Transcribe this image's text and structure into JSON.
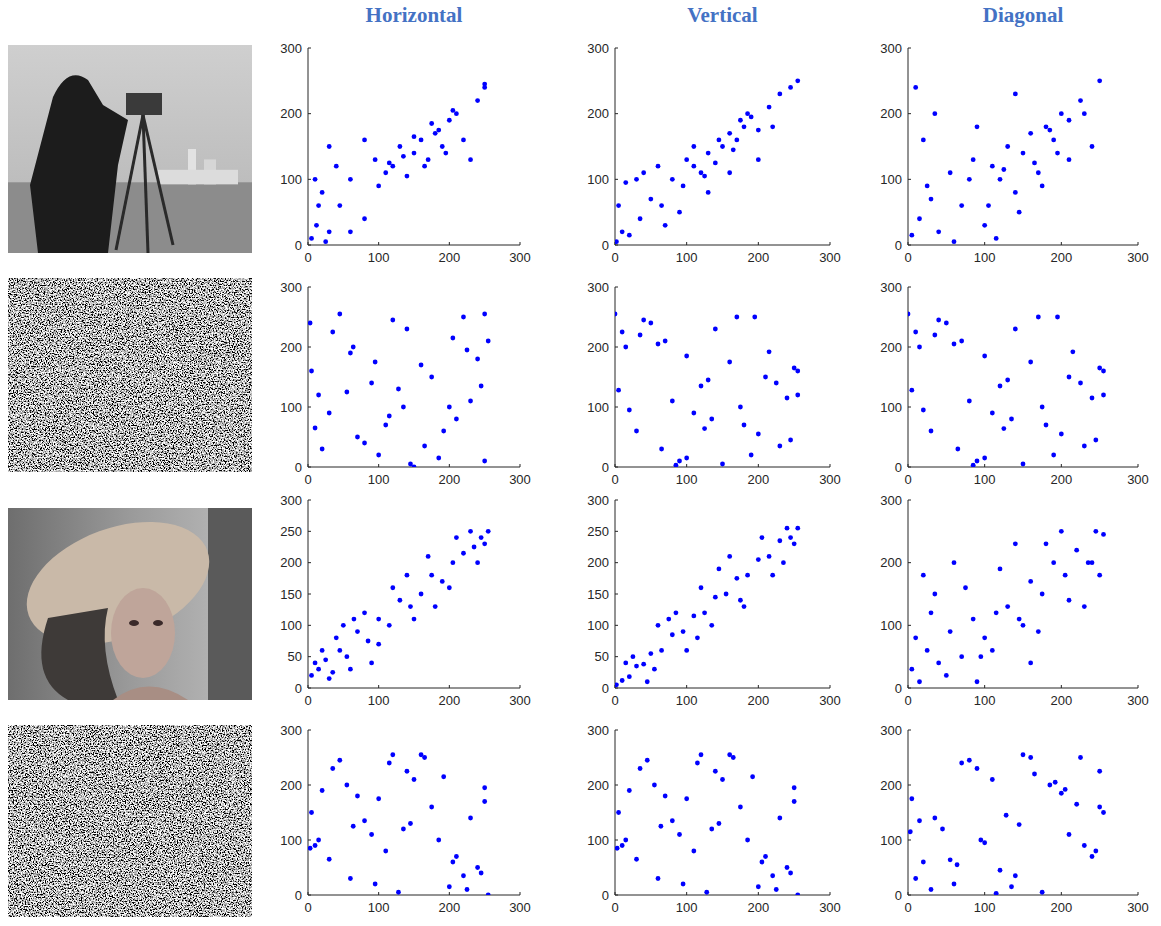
{
  "column_titles": [
    "Horizontal",
    "Vertical",
    "Diagonal"
  ],
  "chart_data": [
    {
      "type": "scatter",
      "color": "#0000ff",
      "marker": "dot",
      "xlim": [
        0,
        300
      ],
      "ylim": [
        0,
        300
      ],
      "xticks": [
        0,
        100,
        200,
        300
      ],
      "yticks": [
        0,
        100,
        200,
        300
      ],
      "x": [
        5,
        12,
        20,
        30,
        45,
        60,
        80,
        95,
        110,
        120,
        130,
        140,
        150,
        160,
        170,
        180,
        190,
        200,
        210,
        220,
        240,
        250,
        10,
        25,
        40,
        100,
        115,
        135,
        150,
        165,
        175,
        185,
        195,
        205,
        60,
        80,
        30,
        15,
        230,
        250
      ],
      "y": [
        10,
        30,
        80,
        20,
        60,
        100,
        40,
        130,
        110,
        120,
        150,
        105,
        140,
        160,
        130,
        170,
        150,
        190,
        200,
        160,
        220,
        245,
        100,
        5,
        120,
        90,
        125,
        135,
        165,
        120,
        185,
        175,
        140,
        205,
        20,
        160,
        150,
        60,
        130,
        240
      ]
    },
    {
      "type": "scatter",
      "color": "#0000ff",
      "marker": "dot",
      "xlim": [
        0,
        300
      ],
      "ylim": [
        0,
        300
      ],
      "xticks": [
        0,
        100,
        200,
        300
      ],
      "yticks": [
        0,
        100,
        200,
        300
      ],
      "x": [
        2,
        10,
        20,
        35,
        50,
        65,
        80,
        95,
        110,
        120,
        130,
        140,
        150,
        160,
        170,
        180,
        190,
        200,
        215,
        230,
        245,
        255,
        15,
        40,
        70,
        100,
        125,
        145,
        165,
        185,
        60,
        90,
        130,
        175,
        200,
        30,
        110,
        160,
        220,
        5
      ],
      "y": [
        5,
        20,
        15,
        40,
        70,
        60,
        100,
        90,
        120,
        110,
        140,
        125,
        150,
        170,
        160,
        180,
        195,
        175,
        210,
        230,
        240,
        250,
        95,
        110,
        30,
        130,
        105,
        160,
        145,
        200,
        120,
        50,
        80,
        190,
        130,
        100,
        150,
        110,
        180,
        60
      ]
    },
    {
      "type": "scatter",
      "color": "#0000ff",
      "marker": "dot",
      "xlim": [
        0,
        300
      ],
      "ylim": [
        0,
        300
      ],
      "xticks": [
        0,
        100,
        200,
        300
      ],
      "yticks": [
        0,
        100,
        200,
        300
      ],
      "x": [
        5,
        15,
        25,
        40,
        55,
        70,
        85,
        100,
        110,
        120,
        130,
        140,
        150,
        160,
        170,
        180,
        190,
        200,
        210,
        225,
        240,
        250,
        20,
        35,
        60,
        90,
        105,
        125,
        145,
        165,
        185,
        195,
        30,
        80,
        140,
        175,
        210,
        10,
        115,
        230
      ],
      "y": [
        15,
        40,
        90,
        20,
        110,
        60,
        130,
        30,
        120,
        100,
        150,
        80,
        140,
        170,
        110,
        180,
        160,
        200,
        130,
        220,
        150,
        250,
        160,
        200,
        5,
        180,
        60,
        115,
        50,
        125,
        175,
        140,
        70,
        100,
        230,
        90,
        190,
        240,
        10,
        200
      ]
    },
    {
      "type": "scatter",
      "color": "#0000ff",
      "marker": "dot",
      "xlim": [
        0,
        300
      ],
      "ylim": [
        0,
        300
      ],
      "xticks": [
        0,
        100,
        200,
        300
      ],
      "yticks": [
        0,
        100,
        200,
        300
      ],
      "x": [
        3,
        250,
        128,
        64,
        192,
        30,
        220,
        100,
        160,
        15,
        240,
        80,
        140,
        200,
        45,
        175,
        110,
        255,
        20,
        90,
        230,
        60,
        150,
        210,
        5,
        120,
        185,
        35,
        245,
        70,
        135,
        250,
        95,
        165,
        10,
        205,
        55,
        145,
        225,
        115
      ],
      "y": [
        240,
        10,
        130,
        200,
        60,
        90,
        250,
        20,
        170,
        120,
        180,
        40,
        230,
        100,
        255,
        150,
        70,
        210,
        30,
        140,
        110,
        190,
        0,
        80,
        160,
        245,
        15,
        225,
        135,
        50,
        100,
        255,
        175,
        35,
        65,
        215,
        125,
        5,
        195,
        85
      ]
    },
    {
      "type": "scatter",
      "color": "#0000ff",
      "marker": "dot",
      "xlim": [
        0,
        300
      ],
      "ylim": [
        0,
        300
      ],
      "xticks": [
        0,
        100,
        200,
        300
      ],
      "yticks": [
        0,
        100,
        200,
        300
      ],
      "x": [
        240,
        10,
        130,
        200,
        60,
        90,
        250,
        20,
        170,
        120,
        180,
        40,
        230,
        100,
        255,
        150,
        70,
        210,
        30,
        140,
        110,
        190,
        0,
        80,
        160,
        245,
        15,
        225,
        135,
        50,
        100,
        255,
        175,
        35,
        65,
        215,
        125,
        5,
        195,
        85
      ],
      "y": [
        115,
        225,
        145,
        55,
        205,
        10,
        165,
        95,
        250,
        135,
        70,
        245,
        35,
        185,
        120,
        5,
        210,
        150,
        60,
        230,
        90,
        20,
        255,
        110,
        175,
        45,
        200,
        140,
        80,
        240,
        15,
        160,
        100,
        220,
        30,
        192,
        64,
        128,
        250,
        3
      ]
    },
    {
      "type": "scatter",
      "color": "#0000ff",
      "marker": "dot",
      "xlim": [
        0,
        300
      ],
      "ylim": [
        0,
        300
      ],
      "xticks": [
        0,
        100,
        200,
        300
      ],
      "yticks": [
        0,
        100,
        200,
        300
      ],
      "x": [
        85,
        195,
        5,
        125,
        215,
        65,
        35,
        175,
        255,
        100,
        50,
        135,
        225,
        15,
        245,
        160,
        80,
        0,
        190,
        110,
        140,
        30,
        210,
        70,
        150,
        255,
        100,
        230,
        40,
        180,
        120,
        170,
        20,
        250,
        90,
        60,
        200,
        130,
        10,
        240
      ],
      "y": [
        3,
        250,
        128,
        64,
        192,
        30,
        220,
        100,
        160,
        15,
        240,
        80,
        140,
        200,
        45,
        175,
        110,
        255,
        20,
        90,
        230,
        60,
        150,
        210,
        5,
        120,
        185,
        35,
        245,
        70,
        135,
        250,
        95,
        165,
        10,
        205,
        55,
        145,
        225,
        115
      ]
    },
    {
      "type": "scatter",
      "color": "#0000ff",
      "marker": "dot",
      "xlim": [
        0,
        300
      ],
      "ylim": [
        0,
        300
      ],
      "xticks": [
        0,
        100,
        200,
        300
      ],
      "yticks": [
        0,
        50,
        100,
        150,
        200,
        250,
        300
      ],
      "x": [
        5,
        15,
        25,
        35,
        45,
        55,
        70,
        85,
        100,
        115,
        130,
        145,
        160,
        175,
        190,
        205,
        220,
        235,
        245,
        255,
        20,
        40,
        60,
        80,
        100,
        140,
        180,
        210,
        240,
        30,
        50,
        120,
        150,
        200,
        230,
        90,
        170,
        250,
        10,
        65
      ],
      "y": [
        20,
        30,
        45,
        25,
        60,
        50,
        90,
        75,
        110,
        100,
        140,
        130,
        150,
        180,
        170,
        200,
        215,
        225,
        240,
        250,
        60,
        80,
        30,
        120,
        70,
        180,
        130,
        240,
        200,
        15,
        100,
        160,
        110,
        160,
        250,
        40,
        210,
        230,
        40,
        110
      ]
    },
    {
      "type": "scatter",
      "color": "#0000ff",
      "marker": "dot",
      "xlim": [
        0,
        300
      ],
      "ylim": [
        0,
        300
      ],
      "xticks": [
        0,
        100,
        200,
        300
      ],
      "yticks": [
        0,
        50,
        100,
        150,
        200,
        250,
        300
      ],
      "x": [
        2,
        10,
        20,
        30,
        40,
        50,
        65,
        80,
        95,
        110,
        125,
        140,
        155,
        170,
        185,
        200,
        215,
        230,
        245,
        255,
        25,
        55,
        85,
        115,
        145,
        175,
        205,
        235,
        60,
        120,
        180,
        240,
        15,
        45,
        100,
        160,
        220,
        250,
        75,
        135
      ],
      "y": [
        5,
        12,
        18,
        35,
        38,
        55,
        60,
        85,
        90,
        115,
        120,
        145,
        150,
        175,
        180,
        205,
        210,
        235,
        240,
        255,
        50,
        30,
        120,
        80,
        190,
        140,
        240,
        200,
        100,
        160,
        130,
        255,
        40,
        10,
        60,
        210,
        180,
        230,
        110,
        100
      ]
    },
    {
      "type": "scatter",
      "color": "#0000ff",
      "marker": "dot",
      "xlim": [
        0,
        300
      ],
      "ylim": [
        0,
        300
      ],
      "xticks": [
        0,
        100,
        200,
        300
      ],
      "yticks": [
        0,
        100,
        200,
        300
      ],
      "x": [
        5,
        15,
        25,
        40,
        55,
        70,
        85,
        100,
        115,
        130,
        145,
        160,
        175,
        190,
        205,
        220,
        235,
        245,
        255,
        10,
        30,
        50,
        75,
        95,
        120,
        150,
        180,
        210,
        240,
        20,
        60,
        110,
        140,
        170,
        200,
        230,
        35,
        90,
        160,
        250
      ],
      "y": [
        30,
        10,
        60,
        40,
        90,
        50,
        110,
        80,
        120,
        130,
        110,
        170,
        150,
        200,
        180,
        220,
        200,
        250,
        245,
        80,
        120,
        20,
        160,
        50,
        190,
        100,
        230,
        140,
        200,
        180,
        200,
        60,
        230,
        90,
        250,
        130,
        150,
        10,
        40,
        180
      ]
    },
    {
      "type": "scatter",
      "color": "#0000ff",
      "marker": "dot",
      "xlim": [
        0,
        300
      ],
      "ylim": [
        0,
        300
      ],
      "xticks": [
        0,
        100,
        200,
        300
      ],
      "yticks": [
        0,
        100,
        200,
        300
      ],
      "x": [
        3,
        250,
        128,
        64,
        192,
        30,
        220,
        100,
        160,
        15,
        240,
        80,
        140,
        200,
        45,
        175,
        110,
        255,
        20,
        90,
        230,
        60,
        150,
        210,
        5,
        120,
        185,
        35,
        245,
        70,
        135,
        250,
        95,
        165,
        10,
        205,
        55,
        145,
        225,
        115
      ],
      "y": [
        85,
        195,
        5,
        125,
        215,
        65,
        35,
        175,
        255,
        100,
        50,
        135,
        225,
        15,
        245,
        160,
        80,
        0,
        190,
        110,
        140,
        30,
        210,
        70,
        150,
        255,
        100,
        230,
        40,
        180,
        120,
        170,
        20,
        250,
        90,
        60,
        200,
        130,
        10,
        240
      ]
    },
    {
      "type": "scatter",
      "color": "#0000ff",
      "marker": "dot",
      "xlim": [
        0,
        300
      ],
      "ylim": [
        0,
        300
      ],
      "xticks": [
        0,
        100,
        200,
        300
      ],
      "yticks": [
        0,
        100,
        200,
        300
      ],
      "x": [
        115,
        225,
        145,
        55,
        205,
        10,
        165,
        95,
        250,
        135,
        70,
        245,
        35,
        185,
        120,
        5,
        210,
        150,
        60,
        230,
        90,
        20,
        255,
        110,
        175,
        45,
        200,
        140,
        80,
        240,
        15,
        160,
        100,
        220,
        30,
        192,
        64,
        128,
        250,
        3
      ],
      "y": [
        240,
        10,
        130,
        200,
        60,
        90,
        250,
        20,
        170,
        120,
        180,
        40,
        230,
        100,
        255,
        150,
        70,
        210,
        30,
        140,
        110,
        190,
        0,
        80,
        160,
        245,
        15,
        225,
        135,
        50,
        100,
        255,
        175,
        35,
        65,
        215,
        125,
        5,
        195,
        85
      ]
    },
    {
      "type": "scatter",
      "color": "#0000ff",
      "marker": "dot",
      "xlim": [
        0,
        300
      ],
      "ylim": [
        0,
        300
      ],
      "xticks": [
        0,
        100,
        200,
        300
      ],
      "yticks": [
        0,
        100,
        200,
        300
      ],
      "x": [
        115,
        225,
        145,
        55,
        205,
        10,
        165,
        95,
        250,
        135,
        70,
        245,
        35,
        185,
        120,
        5,
        210,
        150,
        60,
        230,
        90,
        20,
        255,
        110,
        175,
        45,
        200,
        140,
        80,
        240,
        15,
        160,
        100,
        220,
        30,
        192,
        64,
        128,
        250,
        3
      ],
      "y": [
        3,
        250,
        128,
        64,
        192,
        30,
        220,
        100,
        160,
        15,
        240,
        80,
        140,
        200,
        45,
        175,
        110,
        255,
        20,
        90,
        230,
        60,
        150,
        210,
        5,
        120,
        185,
        35,
        245,
        70,
        135,
        250,
        95,
        165,
        10,
        205,
        55,
        145,
        225,
        115
      ]
    }
  ]
}
